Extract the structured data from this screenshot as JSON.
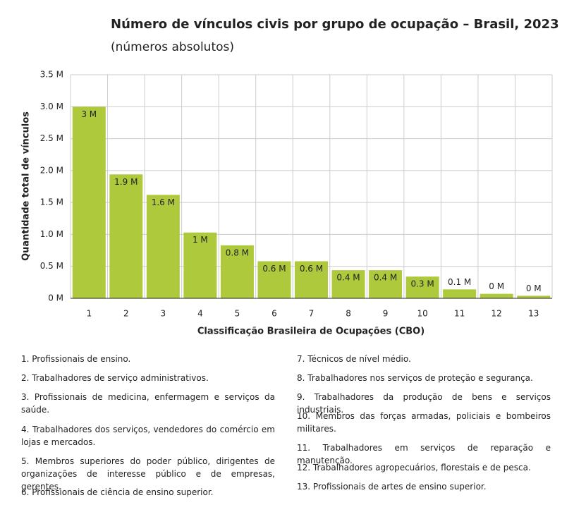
{
  "chart_data": {
    "type": "bar",
    "title": "Número de vínculos civis por grupo de ocupação – Brasil, 2023",
    "subtitle": "(números absolutos)",
    "y_label": "Quantidade total de vínculos",
    "x_label": "Classificação Brasileira de Ocupações (CBO)",
    "categories": [
      "1",
      "2",
      "3",
      "4",
      "5",
      "6",
      "7",
      "8",
      "9",
      "10",
      "11",
      "12",
      "13"
    ],
    "values": [
      3.0,
      1.94,
      1.62,
      1.03,
      0.83,
      0.58,
      0.58,
      0.44,
      0.44,
      0.34,
      0.14,
      0.07,
      0.04
    ],
    "value_labels": [
      "3 M",
      "1.9 M",
      "1.6 M",
      "1 M",
      "0.8 M",
      "0.6 M",
      "0.6 M",
      "0.4 M",
      "0.4 M",
      "0.3 M",
      "0.1 M",
      "0 M",
      "0 M"
    ],
    "color": "#afc93c",
    "ylim": [
      0,
      3.5
    ],
    "yticks": [
      {
        "value": 0,
        "label": "0 M"
      },
      {
        "value": 0.5,
        "label": "0.5 M"
      },
      {
        "value": 1.0,
        "label": "1.0 M"
      },
      {
        "value": 1.5,
        "label": "1.5 M"
      },
      {
        "value": 2.0,
        "label": "2.0 M"
      },
      {
        "value": 2.5,
        "label": "2.5 M"
      },
      {
        "value": 3.0,
        "label": "3.0 M"
      },
      {
        "value": 3.5,
        "label": "3.5 M"
      }
    ],
    "grid": true,
    "notes": [
      "1. Profissionais de ensino.",
      "2. Trabalhadores de serviço administrativos.",
      "3. Profissionais de medicina, enfermagem e serviços da saúde.",
      "4. Trabalhadores dos serviços, vendedores do comércio em lojas e mercados.",
      "5. Membros superiores do poder público, dirigentes de organizações de interesse público e de empresas, gerentes.",
      "6. Profissionais de ciência de ensino superior.",
      "7. Técnicos de nível médio.",
      "8. Trabalhadores nos serviços de proteção e segurança.",
      "9. Trabalhadores da produção de bens e serviços industriais.",
      "10. Membros das forças armadas, policiais e bombeiros militares.",
      "11. Trabalhadores em serviços de reparação e manutenção.",
      "12. Trabalhadores agropecuários, florestais e de pesca.",
      "13. Profissionais de artes de ensino superior."
    ]
  }
}
